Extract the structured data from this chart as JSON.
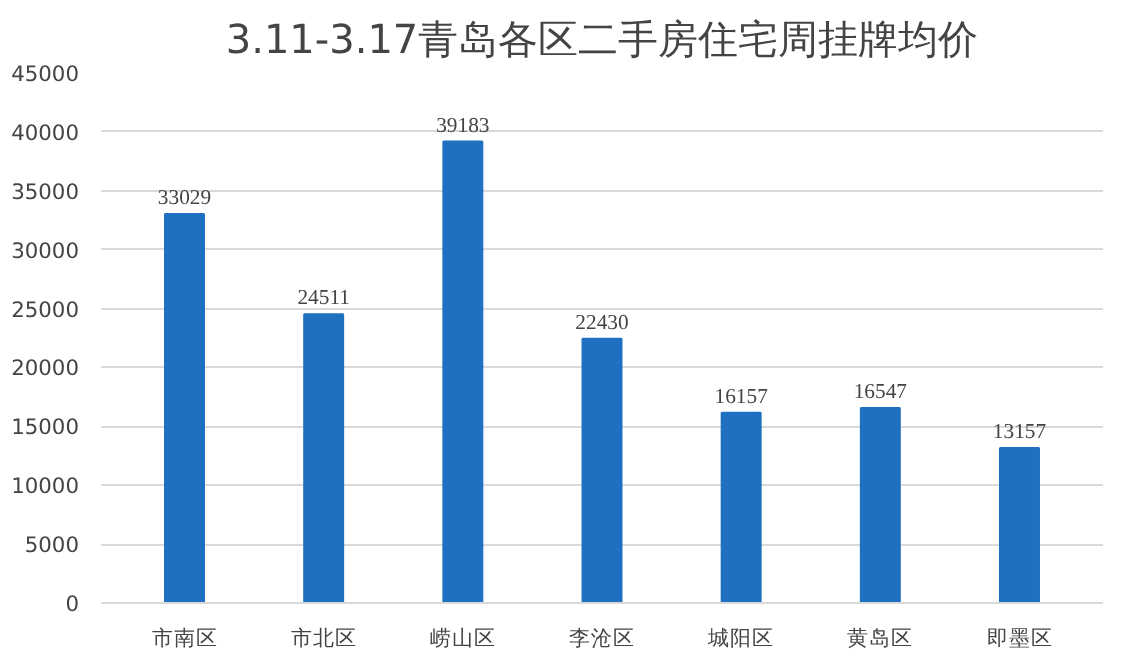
{
  "chart_data": {
    "type": "bar",
    "title": "3.11-3.17青岛各区二手房住宅周挂牌均价",
    "categories": [
      "市南区",
      "市北区",
      "崂山区",
      "李沧区",
      "城阳区",
      "黄岛区",
      "即墨区"
    ],
    "values": [
      33029,
      24511,
      39183,
      22430,
      16157,
      16547,
      13157
    ],
    "color": "#1f70c1",
    "ylim": [
      0,
      45000
    ],
    "yticks": [
      0,
      5000,
      10000,
      15000,
      20000,
      25000,
      30000,
      35000,
      40000,
      45000
    ],
    "grid": "y",
    "data_labels": true
  }
}
